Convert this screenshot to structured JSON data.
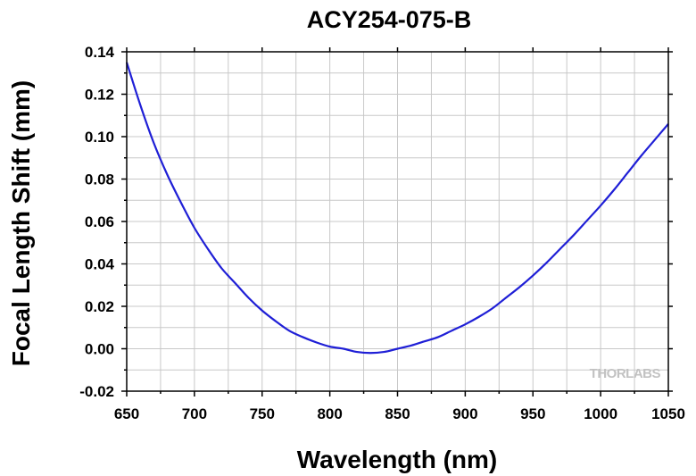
{
  "chart_data": {
    "type": "line",
    "title": "ACY254-075-B",
    "xlabel": "Wavelength (nm)",
    "ylabel": "Focal Length Shift (mm)",
    "xlim": [
      650,
      1050
    ],
    "ylim": [
      -0.02,
      0.14
    ],
    "xticks": [
      650,
      700,
      750,
      800,
      850,
      900,
      950,
      1000,
      1050
    ],
    "yticks": [
      "-0.02",
      "0.00",
      "0.02",
      "0.04",
      "0.06",
      "0.08",
      "0.10",
      "0.12",
      "0.14"
    ],
    "grid": true,
    "watermark": "THORLABS",
    "series": [
      {
        "color": "#1f1fd6",
        "x": [
          650,
          660,
          670,
          680,
          690,
          700,
          710,
          720,
          730,
          740,
          750,
          760,
          770,
          780,
          790,
          800,
          810,
          820,
          830,
          840,
          850,
          860,
          870,
          880,
          890,
          900,
          910,
          920,
          930,
          940,
          950,
          960,
          970,
          980,
          990,
          1000,
          1010,
          1020,
          1030,
          1040,
          1050
        ],
        "y": [
          0.135,
          0.115,
          0.097,
          0.082,
          0.069,
          0.057,
          0.047,
          0.038,
          0.031,
          0.024,
          0.018,
          0.013,
          0.0085,
          0.0055,
          0.003,
          0.001,
          0.0,
          -0.0015,
          -0.002,
          -0.0015,
          0.0,
          0.0015,
          0.0035,
          0.0055,
          0.0085,
          0.0115,
          0.015,
          0.019,
          0.024,
          0.029,
          0.0345,
          0.0405,
          0.047,
          0.0535,
          0.0605,
          0.0675,
          0.075,
          0.083,
          0.091,
          0.0985,
          0.106
        ]
      }
    ]
  }
}
